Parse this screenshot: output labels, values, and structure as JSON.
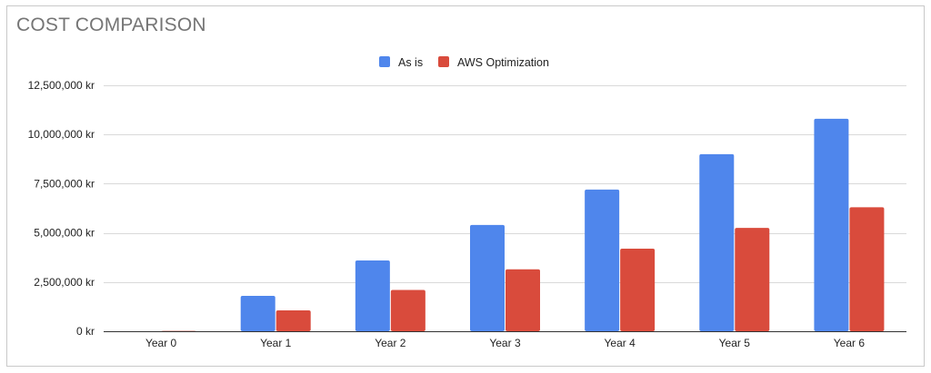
{
  "chart_data": {
    "type": "bar",
    "title": "COST COMPARISON",
    "xlabel": "",
    "ylabel": "",
    "categories": [
      "Year 0",
      "Year 1",
      "Year 2",
      "Year 3",
      "Year 4",
      "Year 5",
      "Year 6"
    ],
    "series": [
      {
        "name": "As is",
        "color": "#4f86ec",
        "values": [
          0,
          1800000,
          3600000,
          5400000,
          7200000,
          9000000,
          10800000
        ]
      },
      {
        "name": "AWS Optimization",
        "color": "#d94b3c",
        "values": [
          20000,
          1060000,
          2100000,
          3150000,
          4200000,
          5250000,
          6300000
        ]
      }
    ],
    "ylim": [
      0,
      12500000
    ],
    "yticks": [
      0,
      2500000,
      5000000,
      7500000,
      10000000,
      12500000
    ],
    "ytick_labels": [
      "0 kr",
      "2,500,000 kr",
      "5,000,000 kr",
      "7,500,000 kr",
      "10,000,000 kr",
      "12,500,000 kr"
    ],
    "grid": true,
    "legend_position": "top-center"
  }
}
